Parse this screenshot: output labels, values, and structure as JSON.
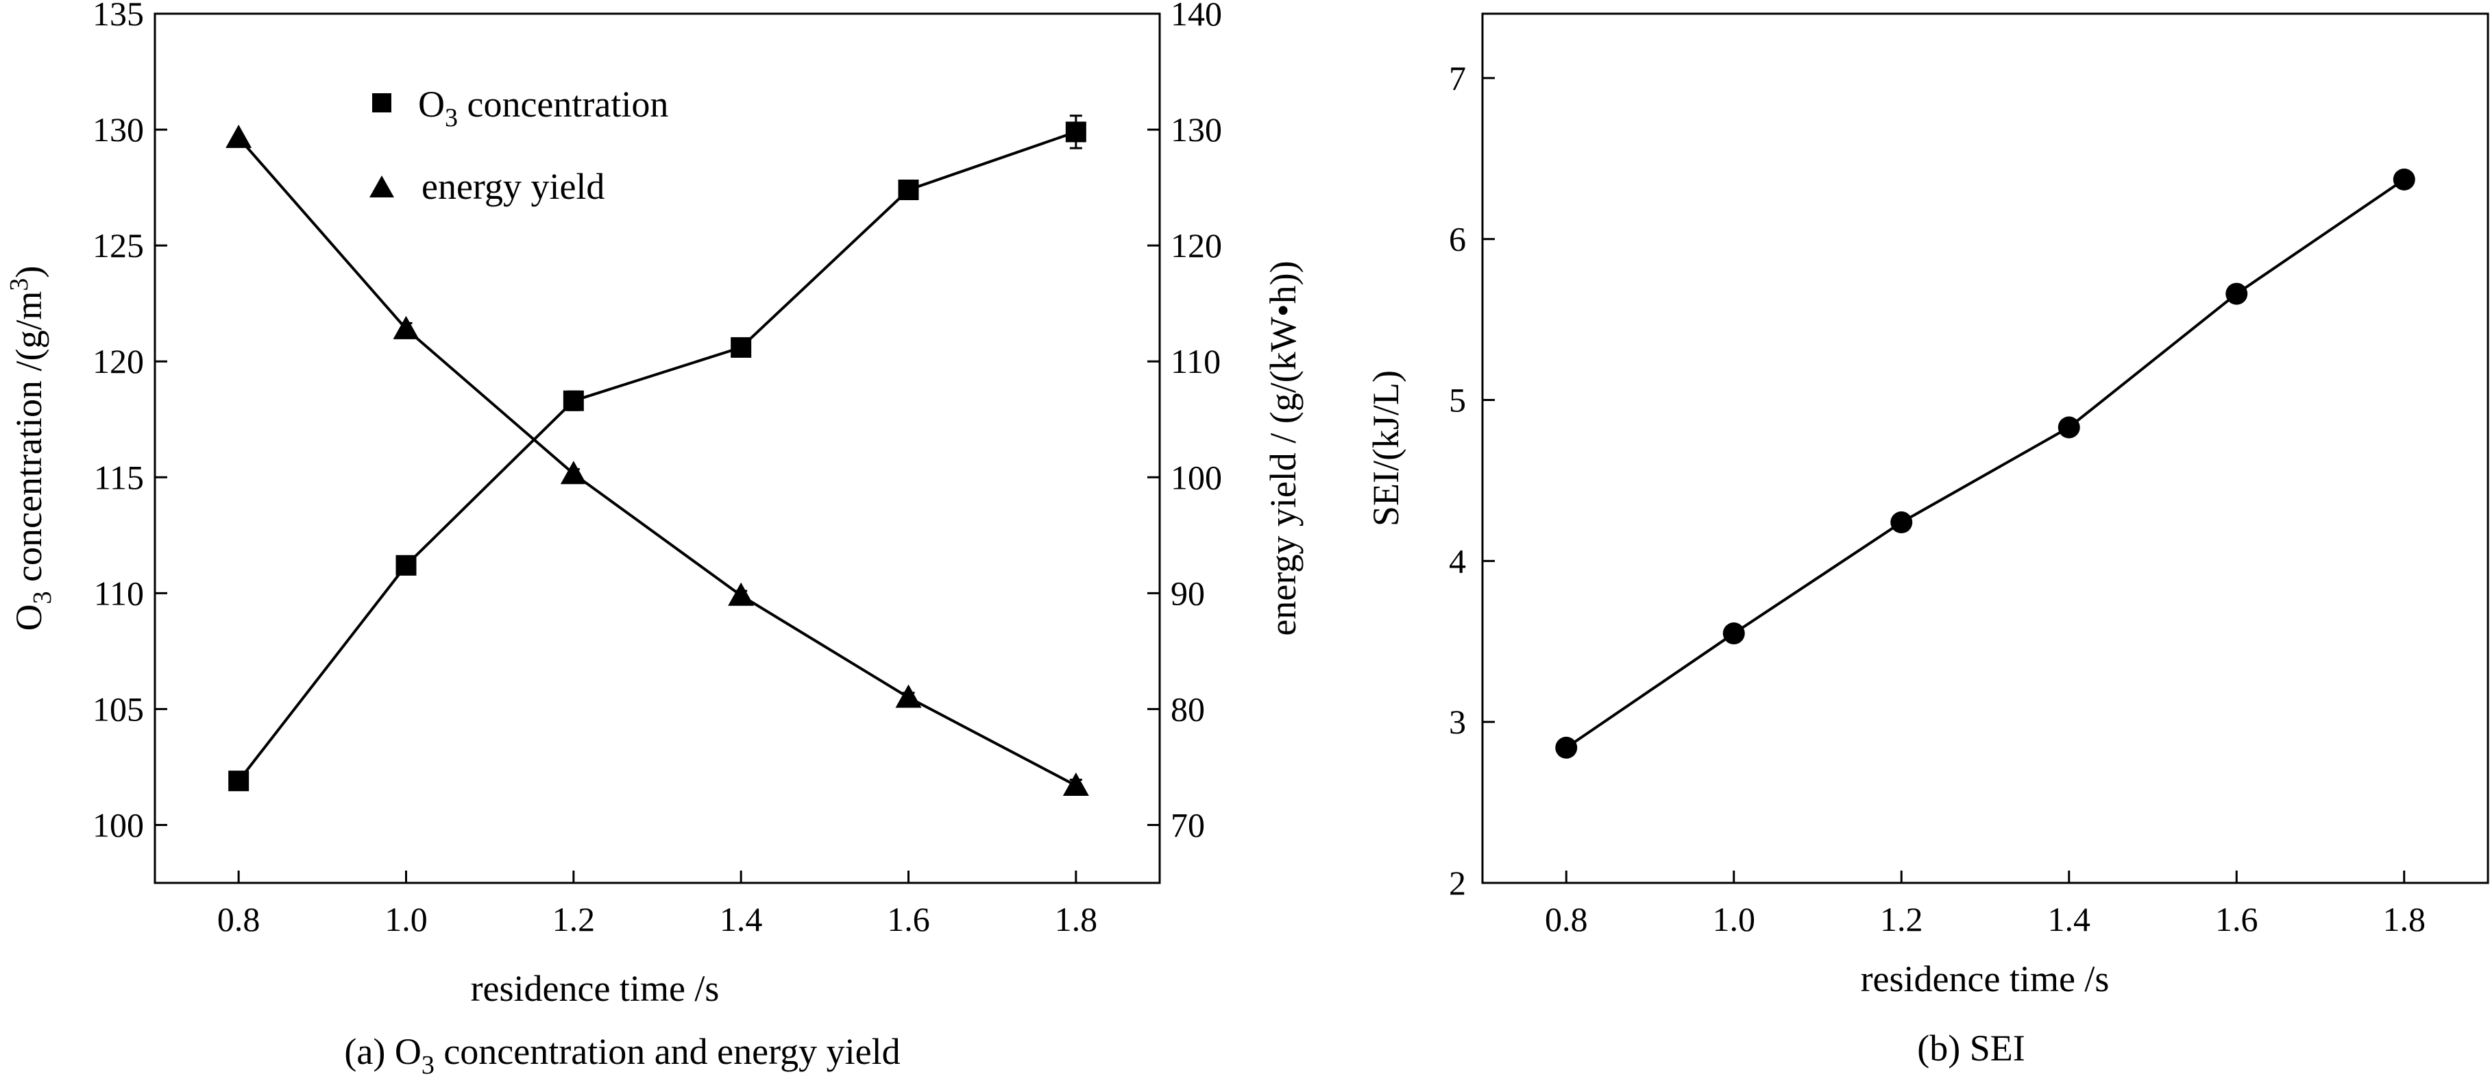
{
  "chart_data": [
    {
      "type": "line",
      "caption": "(a) O3 concentration and energy yield",
      "caption_parts": {
        "pre": "(a) O",
        "sub": "3",
        "post": " concentration and energy yield"
      },
      "xlabel": "residence time /s",
      "xlim": [
        0.7,
        1.9
      ],
      "x_ticks": [
        0.8,
        1.0,
        1.2,
        1.4,
        1.6,
        1.8
      ],
      "x_tick_labels": [
        "0.8",
        "1.0",
        "1.2",
        "1.4",
        "1.6",
        "1.8"
      ],
      "ylabel_left": "O3 concentration /(g/m3)",
      "ylabel_left_parts": {
        "pre": "O",
        "sub": "3",
        "mid": " concentration /(g/m",
        "sup": "3",
        "post": ")"
      },
      "ylim_left": [
        97.5,
        135
      ],
      "y_ticks_left": [
        100,
        105,
        110,
        115,
        120,
        125,
        130,
        135
      ],
      "ylabel_right": "energy yield / (g/(kW•h))",
      "ylim_right": [
        65,
        140
      ],
      "y_ticks_right": [
        70,
        80,
        90,
        100,
        110,
        120,
        130,
        140
      ],
      "legend_position": "top-left",
      "grid": false,
      "x": [
        0.8,
        1.0,
        1.2,
        1.4,
        1.6,
        1.8
      ],
      "series": [
        {
          "name": "O3 concentration",
          "name_parts": {
            "pre": "O",
            "sub": "3",
            "post": " concentration"
          },
          "axis": "left",
          "marker": "square",
          "values": [
            101.9,
            111.2,
            118.3,
            120.6,
            127.4,
            129.9
          ],
          "error": [
            0,
            0,
            0.4,
            0,
            0,
            0.7
          ]
        },
        {
          "name": "energy yield",
          "axis": "right",
          "marker": "triangle",
          "values": [
            129.3,
            112.8,
            100.3,
            89.8,
            81.0,
            73.4
          ],
          "error": [
            0,
            0.5,
            0.4,
            0.4,
            0.4,
            0.5
          ]
        }
      ]
    },
    {
      "type": "line",
      "caption": "(b) SEI",
      "xlabel": "residence time /s",
      "ylabel": "SEI/(kJ/L)",
      "xlim": [
        0.7,
        1.9
      ],
      "x_ticks": [
        0.8,
        1.0,
        1.2,
        1.4,
        1.6,
        1.8
      ],
      "x_tick_labels": [
        "0.8",
        "1.0",
        "1.2",
        "1.4",
        "1.6",
        "1.8"
      ],
      "ylim": [
        2,
        7.4
      ],
      "y_ticks": [
        2,
        3,
        4,
        5,
        6,
        7
      ],
      "grid": false,
      "x": [
        0.8,
        1.0,
        1.2,
        1.4,
        1.6,
        1.8
      ],
      "series": [
        {
          "marker": "circle",
          "values": [
            2.84,
            3.55,
            4.24,
            4.83,
            5.66,
            6.37
          ]
        }
      ]
    }
  ]
}
